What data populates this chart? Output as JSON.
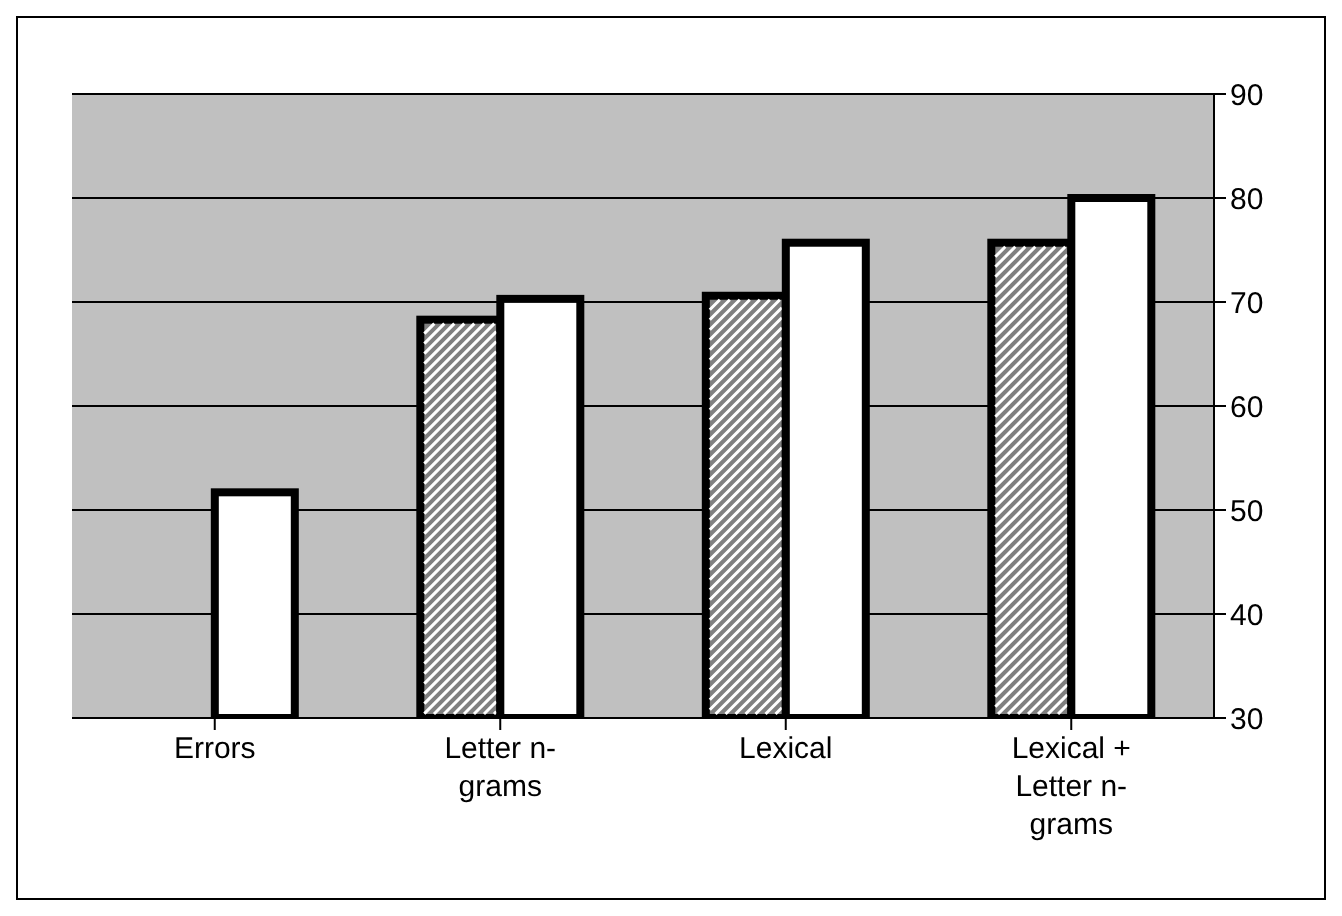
{
  "chart_data": {
    "type": "bar",
    "categories": [
      "Errors",
      "Letter n-grams",
      "Lexical",
      "Lexical + Letter n-grams"
    ],
    "series": [
      {
        "color": "#808080",
        "values": [
          null,
          68.3,
          70.6,
          75.7
        ]
      },
      {
        "color": "#ffffff",
        "values": [
          51.7,
          70.3,
          75.7,
          80.0
        ]
      }
    ],
    "ylim": [
      30,
      90
    ],
    "yticks": [
      30,
      40,
      50,
      60,
      70,
      80,
      90
    ],
    "grid": "y",
    "legend": false
  }
}
